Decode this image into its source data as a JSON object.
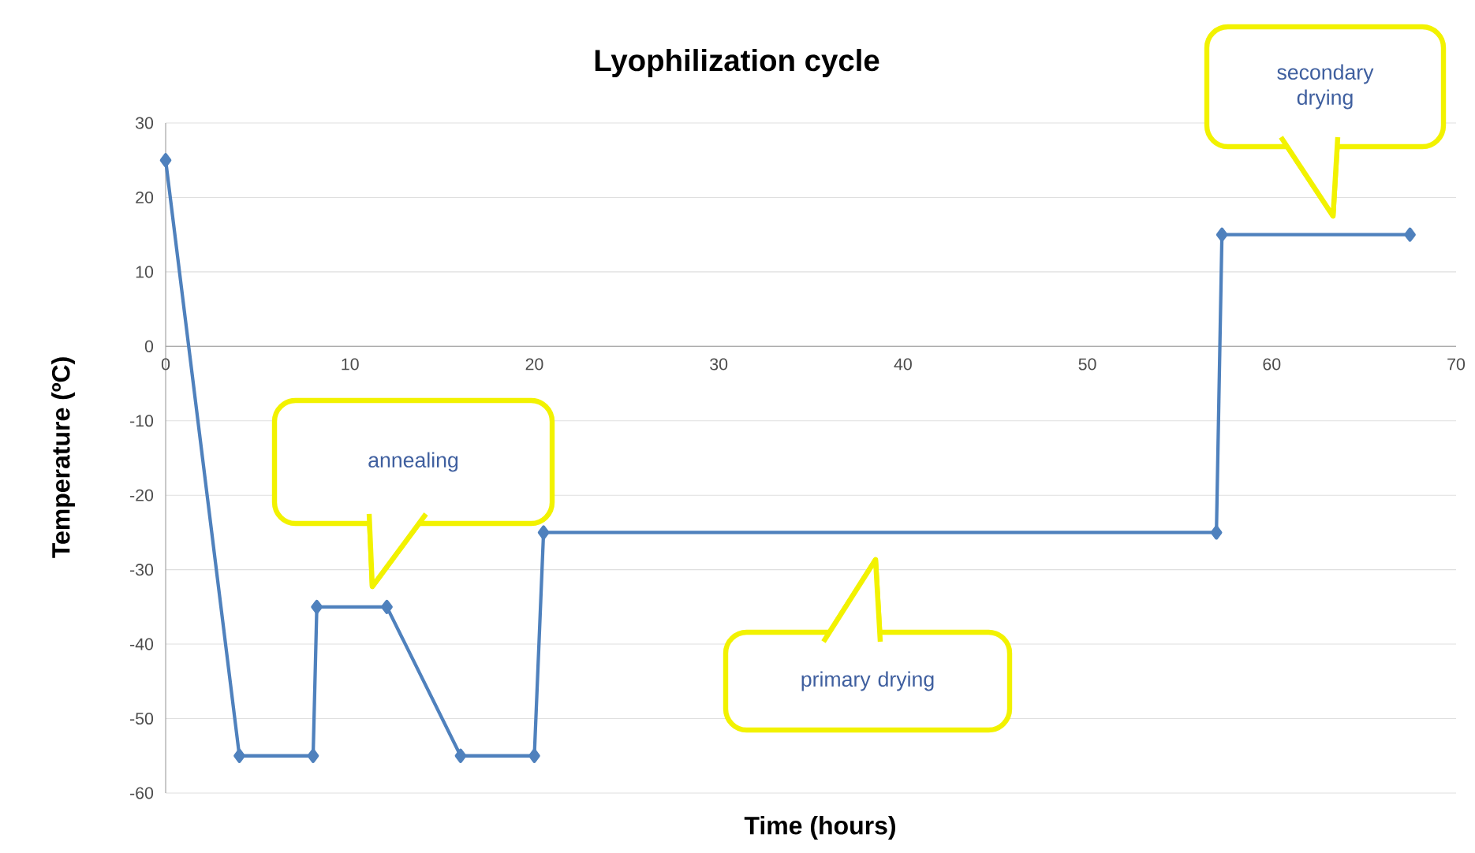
{
  "chart_data": {
    "type": "line",
    "title": "Lyophilization cycle",
    "xlabel": "Time (hours)",
    "ylabel": "Temperature (ºC)",
    "x": [
      0,
      4,
      8,
      8.2,
      12,
      16,
      20,
      20.5,
      57,
      57.3,
      67.5
    ],
    "values": [
      25,
      -55,
      -55,
      -35,
      -35,
      -55,
      -55,
      -25,
      -25,
      15,
      15
    ],
    "color": "#4f81bd",
    "marker": "diamond",
    "grid": "y",
    "xlim": [
      0,
      70
    ],
    "ylim": [
      -60,
      30
    ],
    "xticks": [
      0,
      10,
      20,
      30,
      40,
      50,
      60,
      70
    ],
    "yticks": [
      -60,
      -50,
      -40,
      -30,
      -20,
      -10,
      0,
      10,
      20,
      30
    ],
    "annotations": [
      "annealing",
      "primary drying",
      "secondary drying"
    ]
  }
}
